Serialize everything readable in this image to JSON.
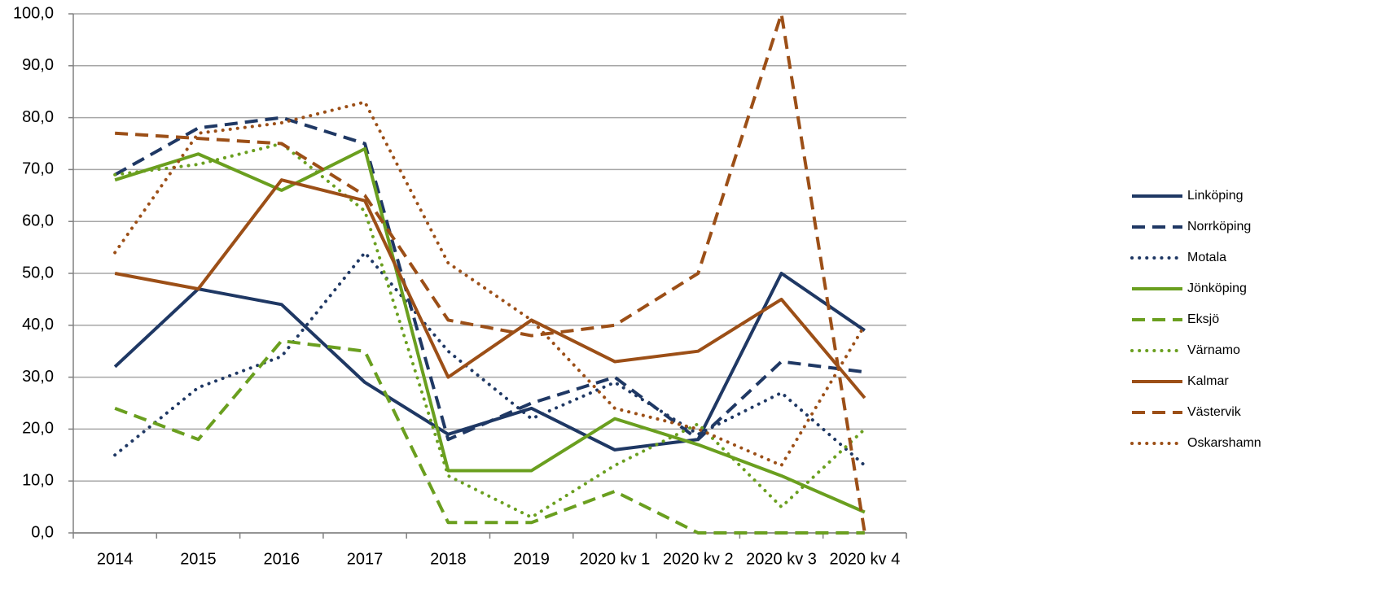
{
  "chart_data": {
    "type": "line",
    "categories": [
      "2014",
      "2015",
      "2016",
      "2017",
      "2018",
      "2019",
      "2020 kv 1",
      "2020 kv 2",
      "2020 kv 3",
      "2020 kv 4"
    ],
    "ylim": [
      0,
      100
    ],
    "yticks": [
      {
        "value": 0,
        "label": "0,0"
      },
      {
        "value": 10,
        "label": "10,0"
      },
      {
        "value": 20,
        "label": "20,0"
      },
      {
        "value": 30,
        "label": "30,0"
      },
      {
        "value": 40,
        "label": "40,0"
      },
      {
        "value": 50,
        "label": "50,0"
      },
      {
        "value": 60,
        "label": "60,0"
      },
      {
        "value": 70,
        "label": "70,0"
      },
      {
        "value": 80,
        "label": "80,0"
      },
      {
        "value": 90,
        "label": "90,0"
      },
      {
        "value": 100,
        "label": "100,0"
      }
    ],
    "grid": true,
    "legend": "right",
    "series": [
      {
        "name": "Linköping",
        "color": "#1f3864",
        "dash": "solid",
        "values": [
          32,
          47,
          44,
          29,
          19,
          24,
          16,
          18,
          50,
          39
        ]
      },
      {
        "name": "Norrköping",
        "color": "#1f3864",
        "dash": "dashed",
        "values": [
          69,
          78,
          80,
          75,
          18,
          25,
          30,
          18,
          33,
          31
        ]
      },
      {
        "name": "Motala",
        "color": "#1f3864",
        "dash": "dotted",
        "values": [
          15,
          28,
          34,
          54,
          35,
          22,
          29,
          19,
          27,
          13
        ]
      },
      {
        "name": "Jönköping",
        "color": "#6a9f1f",
        "dash": "solid",
        "values": [
          68,
          73,
          66,
          74,
          12,
          12,
          22,
          17,
          11,
          4
        ]
      },
      {
        "name": "Eksjö",
        "color": "#6a9f1f",
        "dash": "dashed",
        "values": [
          24,
          18,
          37,
          35,
          2,
          2,
          8,
          0,
          0,
          0
        ]
      },
      {
        "name": "Värnamo",
        "color": "#6a9f1f",
        "dash": "dotted",
        "values": [
          69,
          71,
          75,
          62,
          11,
          3,
          13,
          21,
          5,
          20
        ]
      },
      {
        "name": "Kalmar",
        "color": "#9c4f17",
        "dash": "solid",
        "values": [
          50,
          47,
          68,
          64,
          30,
          41,
          33,
          35,
          45,
          26
        ]
      },
      {
        "name": "Västervik",
        "color": "#9c4f17",
        "dash": "dashed",
        "values": [
          77,
          76,
          75,
          65,
          41,
          38,
          40,
          50,
          100,
          0
        ]
      },
      {
        "name": "Oskarshamn",
        "color": "#9c4f17",
        "dash": "dotted",
        "values": [
          54,
          77,
          79,
          83,
          52,
          41,
          24,
          20,
          13,
          40
        ]
      }
    ]
  }
}
